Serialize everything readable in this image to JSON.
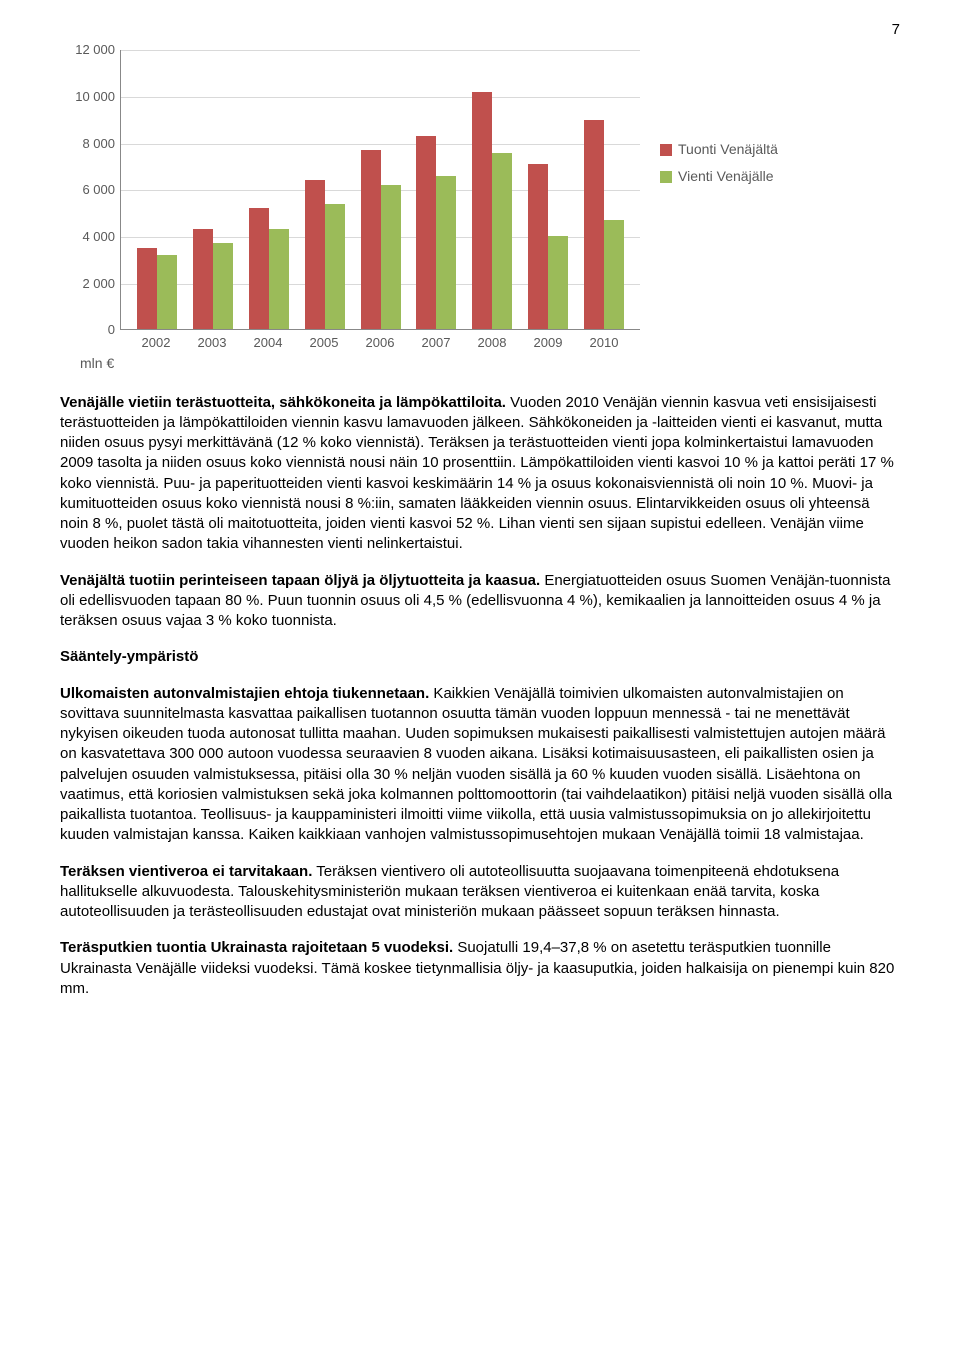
{
  "page_number": "7",
  "chart": {
    "type": "bar",
    "unit_label": "mln €",
    "ymax": 12000,
    "ytick_step": 2000,
    "yticks": [
      "0",
      "2 000",
      "4 000",
      "6 000",
      "8 000",
      "10 000",
      "12 000"
    ],
    "categories": [
      "2002",
      "2003",
      "2004",
      "2005",
      "2006",
      "2007",
      "2008",
      "2009",
      "2010"
    ],
    "series": [
      {
        "name": "Tuonti Venäjältä",
        "color": "#c0504d",
        "values": [
          3500,
          4300,
          5200,
          6400,
          7700,
          8300,
          10200,
          7100,
          9000
        ]
      },
      {
        "name": "Vienti Venäjälle",
        "color": "#9bbb59",
        "values": [
          3200,
          3700,
          4300,
          5400,
          6200,
          6600,
          7600,
          4000,
          4700
        ]
      }
    ],
    "grid_color": "#d9d9d9",
    "axis_color": "#888888",
    "tick_font_color": "#595959",
    "background_color": "#ffffff"
  },
  "paragraphs": {
    "p1_bold": "Venäjälle vietiin terästuotteita, sähkökoneita ja lämpökattiloita.",
    "p1_rest": " Vuoden 2010 Venäjän viennin kasvua veti ensisijaisesti terästuotteiden ja lämpökattiloiden viennin kasvu lamavuoden jälkeen. Sähkökoneiden ja -laitteiden vienti ei kasvanut, mutta niiden osuus pysyi merkittävänä (12 % koko viennistä). Teräksen ja terästuotteiden vienti jopa kolminkertaistui lamavuoden 2009 tasolta ja niiden osuus koko viennistä nousi näin 10 prosenttiin. Lämpökattiloiden vienti kasvoi 10 % ja kattoi peräti 17 % koko viennistä. Puu- ja paperituotteiden vienti kasvoi keskimäärin 14 % ja osuus kokonaisviennistä oli noin 10 %. Muovi- ja kumituotteiden osuus koko viennistä nousi 8 %:iin, samaten lääkkeiden viennin osuus. Elintarvikkeiden osuus oli yhteensä noin 8 %, puolet tästä oli maitotuotteita, joiden vienti kasvoi 52 %. Lihan vienti sen sijaan supistui edelleen. Venäjän viime vuoden heikon sadon takia vihannesten vienti nelinkertaistui.",
    "p2_bold": "Venäjältä tuotiin perinteiseen tapaan öljyä ja öljytuotteita ja kaasua.",
    "p2_rest": " Energiatuotteiden osuus Suomen Venäjän-tuonnista oli edellisvuoden tapaan 80 %. Puun tuonnin osuus oli 4,5 % (edellisvuonna 4 %), kemikaalien ja lannoitteiden osuus 4 % ja teräksen osuus vajaa 3 % koko tuonnista.",
    "section_heading": "Sääntely-ympäristö",
    "p3_bold": "Ulkomaisten autonvalmistajien ehtoja tiukennetaan.",
    "p3_rest": " Kaikkien Venäjällä toimivien ulkomaisten autonvalmistajien on sovittava suunnitelmasta kasvattaa paikallisen tuotannon osuutta tämän vuoden loppuun mennessä - tai ne menettävät nykyisen oikeuden tuoda autonosat tullitta maahan. Uuden sopimuksen mukaisesti paikallisesti valmistettujen autojen määrä on kasvatettava 300 000 autoon vuodessa seuraavien 8 vuoden aikana. Lisäksi kotimaisuusasteen, eli paikallisten osien ja palvelujen osuuden valmistuksessa, pitäisi olla 30 % neljän vuoden sisällä ja 60 % kuuden vuoden sisällä. Lisäehtona on vaatimus, että koriosien valmistuksen sekä joka kolmannen polttomoottorin (tai vaihdelaatikon) pitäisi neljä vuoden sisällä olla paikallista tuotantoa. Teollisuus- ja kauppaministeri ilmoitti viime viikolla, että uusia valmistussopimuksia on jo allekirjoitettu kuuden valmistajan kanssa. Kaiken kaikkiaan vanhojen valmistussopimusehtojen mukaan Venäjällä toimii 18 valmistajaa.",
    "p4_bold": "Teräksen vientiveroa ei tarvitakaan.",
    "p4_rest": " Teräksen vientivero oli autoteollisuutta suojaavana toimenpiteenä ehdotuksena hallitukselle alkuvuodesta. Talouskehitysministeriön mukaan teräksen vientiveroa ei kuitenkaan enää tarvita, koska autoteollisuuden ja terästeollisuuden edustajat ovat ministeriön mukaan päässeet sopuun teräksen hinnasta.",
    "p5_bold": "Teräsputkien tuontia Ukrainasta rajoitetaan 5 vuodeksi.",
    "p5_rest": " Suojatulli 19,4–37,8 % on asetettu teräsputkien tuonnille Ukrainasta Venäjälle viideksi vuodeksi. Tämä koskee tietynmallisia öljy- ja kaasuputkia, joiden halkaisija on pienempi kuin 820 mm."
  }
}
